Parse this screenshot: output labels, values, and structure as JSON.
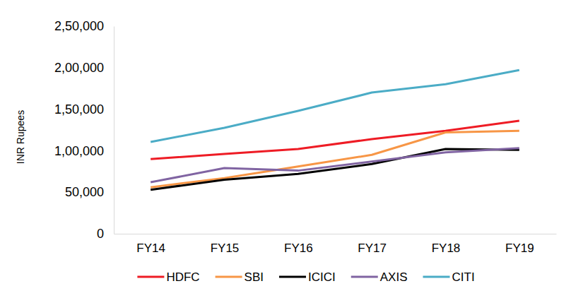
{
  "chart_data": {
    "type": "line",
    "y_label": "INR Rupees",
    "categories": [
      "FY14",
      "FY15",
      "FY16",
      "FY17",
      "FY18",
      "FY19"
    ],
    "series": [
      {
        "name": "HDFC",
        "color": "#ee1c25",
        "values": [
          90000,
          96000,
          102000,
          114000,
          124000,
          136000
        ]
      },
      {
        "name": "SBI",
        "color": "#f79646",
        "values": [
          56000,
          67000,
          81000,
          95000,
          122000,
          124000
        ]
      },
      {
        "name": "ICICI",
        "color": "#000000",
        "values": [
          53000,
          65000,
          72000,
          84000,
          102000,
          101000
        ]
      },
      {
        "name": "AXIS",
        "color": "#8064a2",
        "values": [
          62000,
          79000,
          76000,
          87000,
          98000,
          103000
        ]
      },
      {
        "name": "CITI",
        "color": "#4bacc6",
        "values": [
          110500,
          127500,
          148000,
          170000,
          180000,
          197000
        ]
      }
    ],
    "ylim": [
      0,
      250000
    ],
    "yticks": [
      0,
      {
        "value": 50000,
        "label": "50,000"
      },
      {
        "value": 100000,
        "label": "1,00,000"
      },
      {
        "value": 150000,
        "label": "1,50,000"
      },
      {
        "value": 200000,
        "label": "2,00,000"
      },
      {
        "value": 250000,
        "label": "2,50,000"
      }
    ],
    "grid": false,
    "legend": "bottom"
  }
}
